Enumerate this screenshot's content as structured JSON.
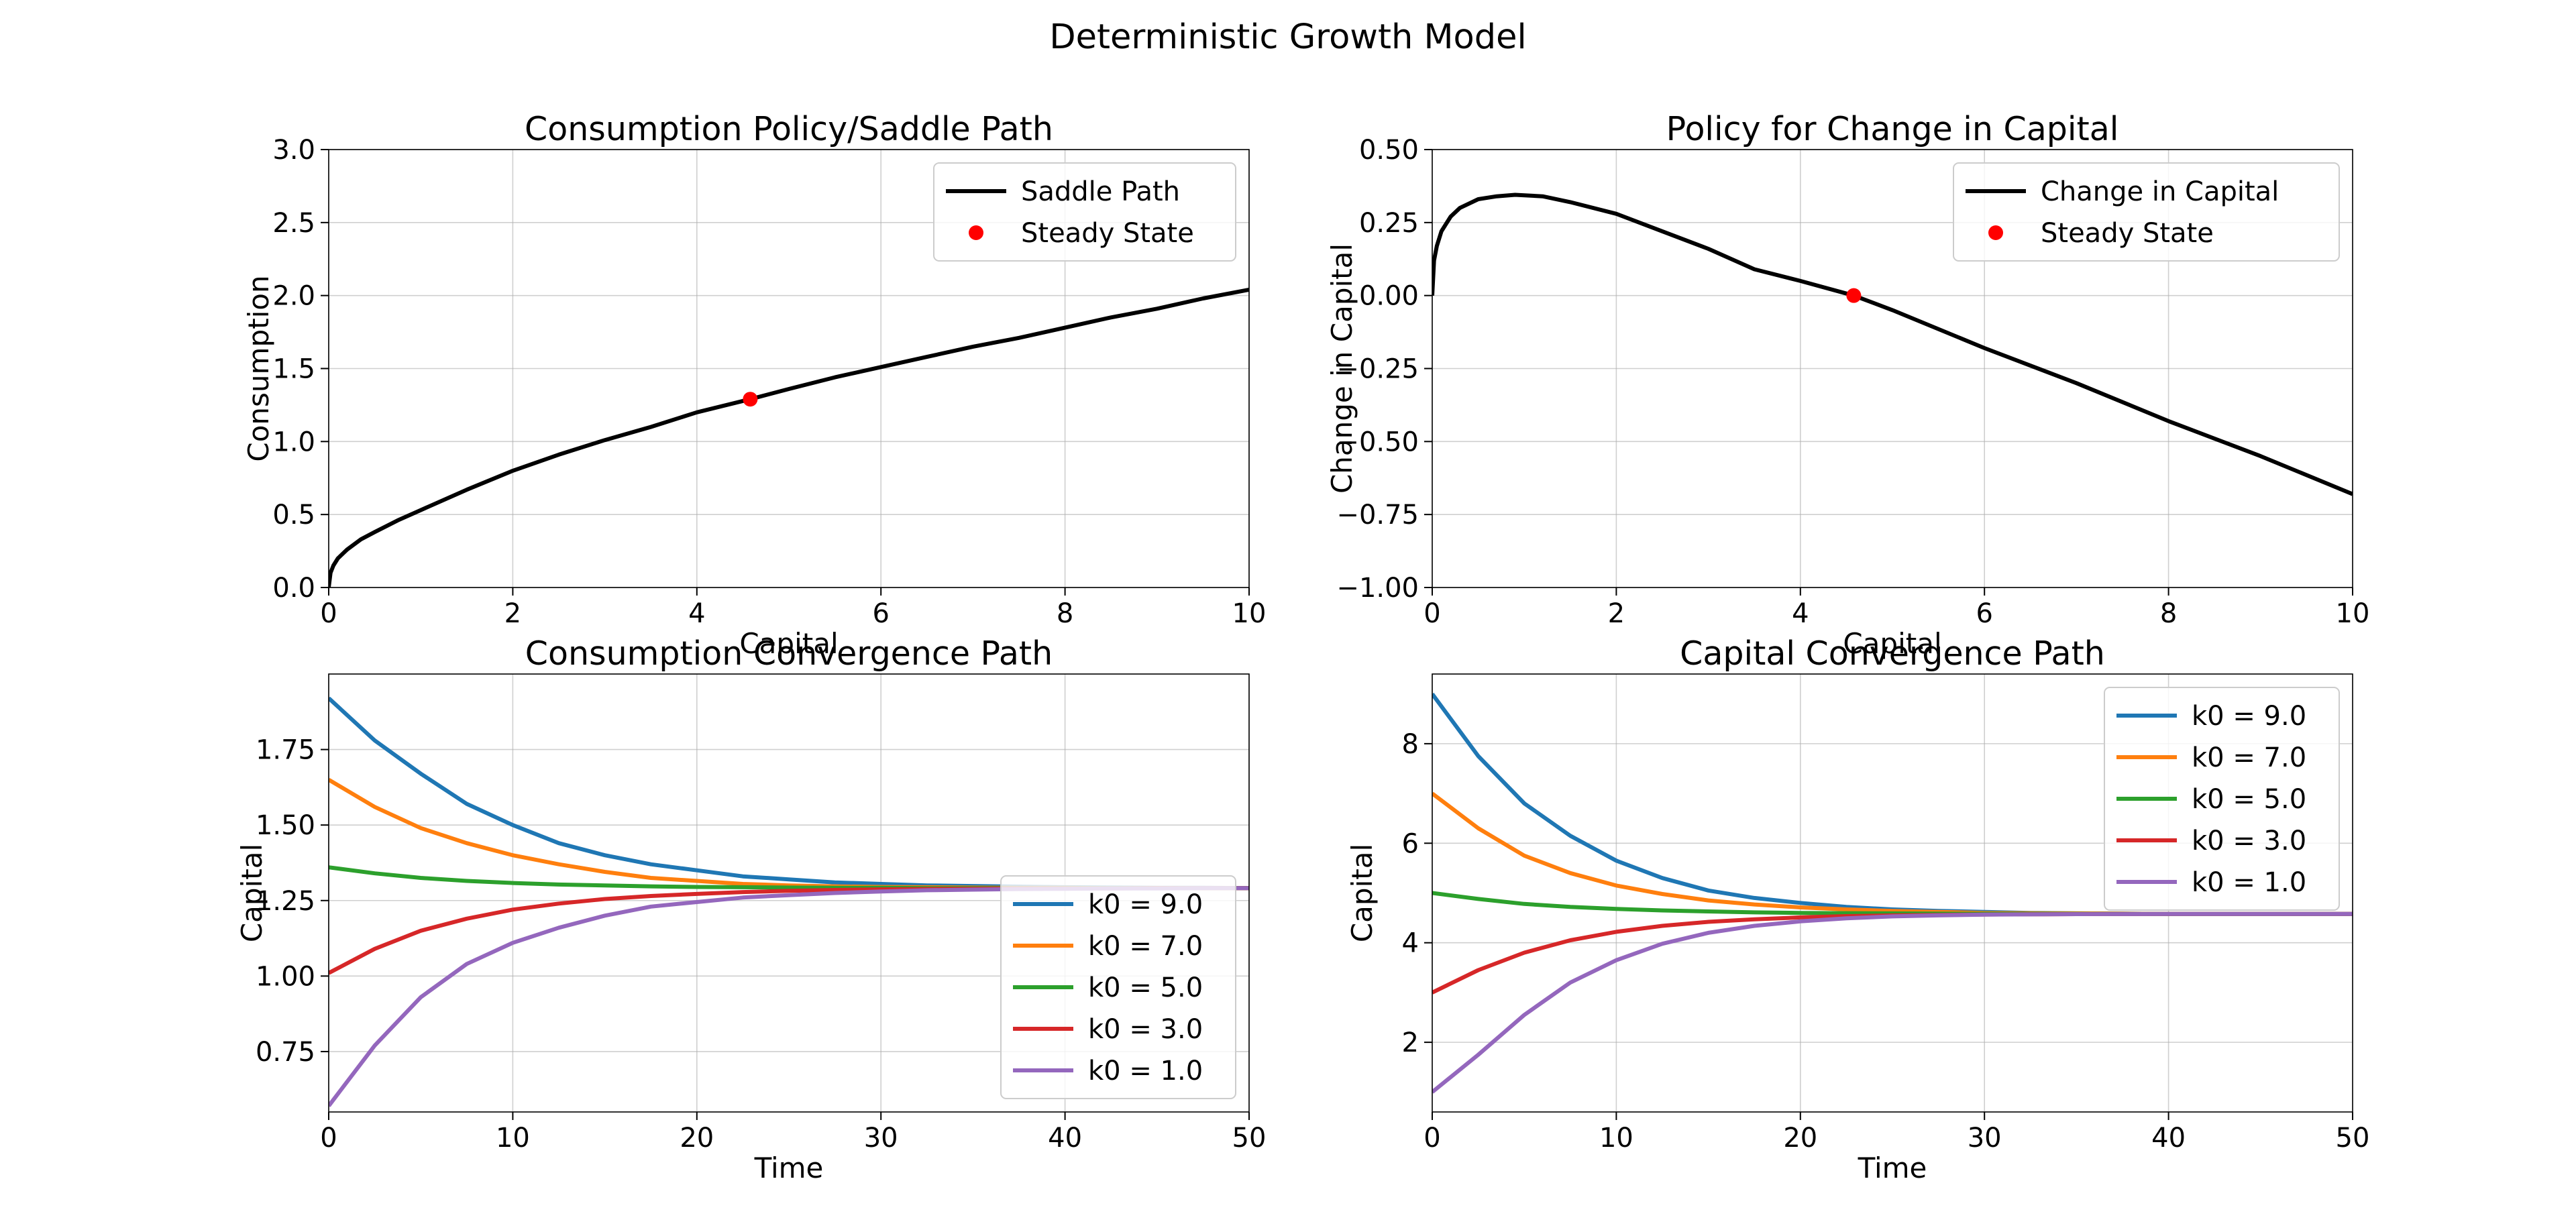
{
  "figure": {
    "suptitle": "Deterministic Growth Model"
  },
  "chart_data": [
    {
      "id": "consumption-policy",
      "type": "line",
      "title": "Consumption Policy/Saddle Path",
      "xlabel": "Capital",
      "ylabel": "Consumption",
      "xlim": [
        0,
        10
      ],
      "ylim": [
        0,
        3
      ],
      "xticks": [
        0,
        2,
        4,
        6,
        8,
        10
      ],
      "yticks": [
        0.0,
        0.5,
        1.0,
        1.5,
        2.0,
        2.5,
        3.0
      ],
      "ytick_labels": [
        "0.0",
        "0.5",
        "1.0",
        "1.5",
        "2.0",
        "2.5",
        "3.0"
      ],
      "grid": true,
      "legend_position": "upper-right",
      "series": [
        {
          "name": "Saddle Path",
          "kind": "line",
          "color": "#000000",
          "x": [
            0,
            0.02,
            0.05,
            0.1,
            0.2,
            0.35,
            0.5,
            0.75,
            1.0,
            1.5,
            2.0,
            2.5,
            3.0,
            3.5,
            4.0,
            4.58,
            5.0,
            5.5,
            6.0,
            6.5,
            7.0,
            7.5,
            8.0,
            8.5,
            9.0,
            9.5,
            10.0
          ],
          "y": [
            0,
            0.1,
            0.15,
            0.2,
            0.26,
            0.33,
            0.38,
            0.46,
            0.53,
            0.67,
            0.8,
            0.91,
            1.01,
            1.1,
            1.2,
            1.29,
            1.36,
            1.44,
            1.51,
            1.58,
            1.65,
            1.71,
            1.78,
            1.85,
            1.91,
            1.98,
            2.04
          ]
        },
        {
          "name": "Steady State",
          "kind": "point",
          "color": "#ff0000",
          "x": [
            4.58
          ],
          "y": [
            1.29
          ]
        }
      ]
    },
    {
      "id": "capital-change-policy",
      "type": "line",
      "title": "Policy for Change in Capital",
      "xlabel": "Capital",
      "ylabel": "Change in Capital",
      "xlim": [
        0,
        10
      ],
      "ylim": [
        -1.0,
        0.5
      ],
      "xticks": [
        0,
        2,
        4,
        6,
        8,
        10
      ],
      "yticks": [
        -1.0,
        -0.75,
        -0.5,
        -0.25,
        0.0,
        0.25,
        0.5
      ],
      "ytick_labels": [
        "−1.00",
        "−0.75",
        "−0.50",
        "−0.25",
        "0.00",
        "0.25",
        "0.50"
      ],
      "grid": true,
      "legend_position": "upper-right",
      "series": [
        {
          "name": "Change in Capital",
          "kind": "line",
          "color": "#000000",
          "x": [
            0,
            0.02,
            0.05,
            0.1,
            0.2,
            0.3,
            0.5,
            0.7,
            0.9,
            1.2,
            1.5,
            2.0,
            2.5,
            3.0,
            3.5,
            4.0,
            4.58,
            5.0,
            6.0,
            7.0,
            8.0,
            9.0,
            10.0
          ],
          "y": [
            0,
            0.12,
            0.17,
            0.22,
            0.27,
            0.3,
            0.33,
            0.34,
            0.345,
            0.34,
            0.32,
            0.28,
            0.22,
            0.16,
            0.09,
            0.05,
            0.0,
            -0.05,
            -0.18,
            -0.3,
            -0.43,
            -0.55,
            -0.68
          ]
        },
        {
          "name": "Steady State",
          "kind": "point",
          "color": "#ff0000",
          "x": [
            4.58
          ],
          "y": [
            0.0
          ]
        }
      ]
    },
    {
      "id": "consumption-convergence",
      "type": "line",
      "title": "Consumption Convergence Path",
      "xlabel": "Time",
      "ylabel": "Capital",
      "xlim": [
        0,
        50
      ],
      "ylim": [
        0.55,
        2.0
      ],
      "xticks": [
        0,
        10,
        20,
        30,
        40,
        50
      ],
      "yticks": [
        0.75,
        1.0,
        1.25,
        1.5,
        1.75
      ],
      "ytick_labels": [
        "0.75",
        "1.00",
        "1.25",
        "1.50",
        "1.75"
      ],
      "grid": true,
      "legend_position": "lower-right",
      "series": [
        {
          "name": "k0 = 9.0",
          "kind": "line",
          "color": "#1f77b4",
          "x": [
            0,
            2.5,
            5,
            7.5,
            10,
            12.5,
            15,
            17.5,
            20,
            22.5,
            25,
            27.5,
            30,
            32.5,
            35,
            37.5,
            40,
            42.5,
            45,
            47.5,
            50
          ],
          "y": [
            1.92,
            1.78,
            1.67,
            1.57,
            1.5,
            1.44,
            1.4,
            1.37,
            1.35,
            1.33,
            1.32,
            1.31,
            1.305,
            1.3,
            1.298,
            1.296,
            1.294,
            1.293,
            1.292,
            1.292,
            1.291
          ]
        },
        {
          "name": "k0 = 7.0",
          "kind": "line",
          "color": "#ff7f0e",
          "x": [
            0,
            2.5,
            5,
            7.5,
            10,
            12.5,
            15,
            17.5,
            20,
            22.5,
            25,
            27.5,
            30,
            32.5,
            35,
            37.5,
            40,
            42.5,
            45,
            47.5,
            50
          ],
          "y": [
            1.65,
            1.56,
            1.49,
            1.44,
            1.4,
            1.37,
            1.345,
            1.325,
            1.315,
            1.305,
            1.3,
            1.297,
            1.295,
            1.294,
            1.293,
            1.292,
            1.292,
            1.291,
            1.291,
            1.291,
            1.291
          ]
        },
        {
          "name": "k0 = 5.0",
          "kind": "line",
          "color": "#2ca02c",
          "x": [
            0,
            2.5,
            5,
            7.5,
            10,
            12.5,
            15,
            17.5,
            20,
            22.5,
            25,
            27.5,
            30,
            32.5,
            35,
            37.5,
            40,
            42.5,
            45,
            47.5,
            50
          ],
          "y": [
            1.36,
            1.34,
            1.325,
            1.315,
            1.308,
            1.303,
            1.3,
            1.297,
            1.295,
            1.294,
            1.293,
            1.292,
            1.292,
            1.291,
            1.291,
            1.291,
            1.291,
            1.291,
            1.291,
            1.291,
            1.291
          ]
        },
        {
          "name": "k0 = 3.0",
          "kind": "line",
          "color": "#d62728",
          "x": [
            0,
            2.5,
            5,
            7.5,
            10,
            12.5,
            15,
            17.5,
            20,
            22.5,
            25,
            27.5,
            30,
            32.5,
            35,
            37.5,
            40,
            42.5,
            45,
            47.5,
            50
          ],
          "y": [
            1.01,
            1.09,
            1.15,
            1.19,
            1.22,
            1.24,
            1.255,
            1.265,
            1.272,
            1.278,
            1.282,
            1.285,
            1.287,
            1.288,
            1.289,
            1.29,
            1.29,
            1.29,
            1.291,
            1.291,
            1.291
          ]
        },
        {
          "name": "k0 = 1.0",
          "kind": "line",
          "color": "#9467bd",
          "x": [
            0,
            2.5,
            5,
            7.5,
            10,
            12.5,
            15,
            17.5,
            20,
            22.5,
            25,
            27.5,
            30,
            32.5,
            35,
            37.5,
            40,
            42.5,
            45,
            47.5,
            50
          ],
          "y": [
            0.57,
            0.77,
            0.93,
            1.04,
            1.11,
            1.16,
            1.2,
            1.23,
            1.245,
            1.26,
            1.268,
            1.275,
            1.28,
            1.284,
            1.286,
            1.288,
            1.289,
            1.29,
            1.29,
            1.291,
            1.291
          ]
        }
      ]
    },
    {
      "id": "capital-convergence",
      "type": "line",
      "title": "Capital Convergence Path",
      "xlabel": "Time",
      "ylabel": "Capital",
      "xlim": [
        0,
        50
      ],
      "ylim": [
        0.6,
        9.4
      ],
      "xticks": [
        0,
        10,
        20,
        30,
        40,
        50
      ],
      "yticks": [
        2,
        4,
        6,
        8
      ],
      "ytick_labels": [
        "2",
        "4",
        "6",
        "8"
      ],
      "grid": true,
      "legend_position": "upper-right",
      "series": [
        {
          "name": "k0 = 9.0",
          "kind": "line",
          "color": "#1f77b4",
          "x": [
            0,
            2.5,
            5,
            7.5,
            10,
            12.5,
            15,
            17.5,
            20,
            22.5,
            25,
            27.5,
            30,
            32.5,
            35,
            37.5,
            40,
            42.5,
            45,
            47.5,
            50
          ],
          "y": [
            9.0,
            7.75,
            6.8,
            6.15,
            5.65,
            5.3,
            5.05,
            4.9,
            4.8,
            4.72,
            4.67,
            4.64,
            4.62,
            4.6,
            4.59,
            4.585,
            4.58,
            4.58,
            4.58,
            4.58,
            4.58
          ]
        },
        {
          "name": "k0 = 7.0",
          "kind": "line",
          "color": "#ff7f0e",
          "x": [
            0,
            2.5,
            5,
            7.5,
            10,
            12.5,
            15,
            17.5,
            20,
            22.5,
            25,
            27.5,
            30,
            32.5,
            35,
            37.5,
            40,
            42.5,
            45,
            47.5,
            50
          ],
          "y": [
            7.0,
            6.3,
            5.75,
            5.4,
            5.15,
            4.98,
            4.85,
            4.77,
            4.71,
            4.67,
            4.64,
            4.62,
            4.6,
            4.595,
            4.59,
            4.585,
            4.58,
            4.58,
            4.58,
            4.58,
            4.58
          ]
        },
        {
          "name": "k0 = 5.0",
          "kind": "line",
          "color": "#2ca02c",
          "x": [
            0,
            2.5,
            5,
            7.5,
            10,
            12.5,
            15,
            17.5,
            20,
            22.5,
            25,
            27.5,
            30,
            32.5,
            35,
            37.5,
            40,
            42.5,
            45,
            47.5,
            50
          ],
          "y": [
            5.0,
            4.88,
            4.78,
            4.72,
            4.68,
            4.65,
            4.63,
            4.61,
            4.6,
            4.595,
            4.59,
            4.585,
            4.583,
            4.582,
            4.581,
            4.58,
            4.58,
            4.58,
            4.58,
            4.58,
            4.58
          ]
        },
        {
          "name": "k0 = 3.0",
          "kind": "line",
          "color": "#d62728",
          "x": [
            0,
            2.5,
            5,
            7.5,
            10,
            12.5,
            15,
            17.5,
            20,
            22.5,
            25,
            27.5,
            30,
            32.5,
            35,
            37.5,
            40,
            42.5,
            45,
            47.5,
            50
          ],
          "y": [
            3.0,
            3.45,
            3.8,
            4.05,
            4.22,
            4.34,
            4.42,
            4.47,
            4.51,
            4.535,
            4.55,
            4.56,
            4.567,
            4.572,
            4.575,
            4.577,
            4.578,
            4.579,
            4.58,
            4.58,
            4.58
          ]
        },
        {
          "name": "k0 = 1.0",
          "kind": "line",
          "color": "#9467bd",
          "x": [
            0,
            2.5,
            5,
            7.5,
            10,
            12.5,
            15,
            17.5,
            20,
            22.5,
            25,
            27.5,
            30,
            32.5,
            35,
            37.5,
            40,
            42.5,
            45,
            47.5,
            50
          ],
          "y": [
            1.0,
            1.75,
            2.55,
            3.2,
            3.65,
            3.98,
            4.2,
            4.34,
            4.43,
            4.49,
            4.53,
            4.55,
            4.565,
            4.57,
            4.575,
            4.577,
            4.578,
            4.579,
            4.58,
            4.58,
            4.58
          ]
        }
      ]
    }
  ]
}
